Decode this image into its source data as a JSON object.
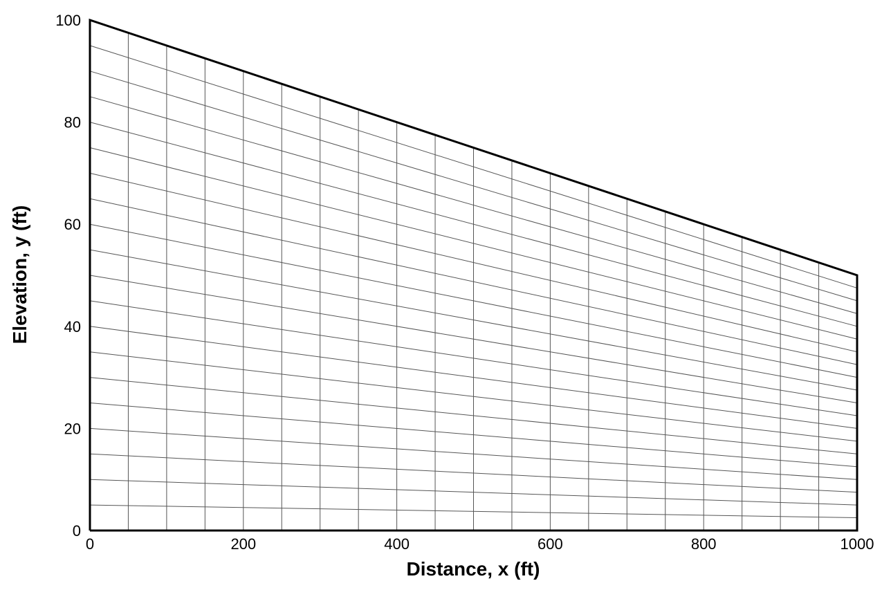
{
  "chart_data": {
    "type": "mesh",
    "xlabel": "Distance, x (ft)",
    "ylabel": "Elevation, y (ft)",
    "xlim": [
      0,
      1000
    ],
    "ylim": [
      0,
      100
    ],
    "x_ticks": [
      0,
      200,
      400,
      600,
      800,
      1000
    ],
    "x_tick_labels": [
      "0",
      "200",
      "400",
      "600",
      "800",
      "1000"
    ],
    "y_ticks": [
      0,
      20,
      40,
      60,
      80,
      100
    ],
    "y_tick_labels": [
      "0",
      "20",
      "40",
      "60",
      "80",
      "100"
    ],
    "top_boundary": {
      "x": [
        0,
        1000
      ],
      "y": [
        100,
        50
      ]
    },
    "columns": 20,
    "rows": 20,
    "grid": true
  }
}
